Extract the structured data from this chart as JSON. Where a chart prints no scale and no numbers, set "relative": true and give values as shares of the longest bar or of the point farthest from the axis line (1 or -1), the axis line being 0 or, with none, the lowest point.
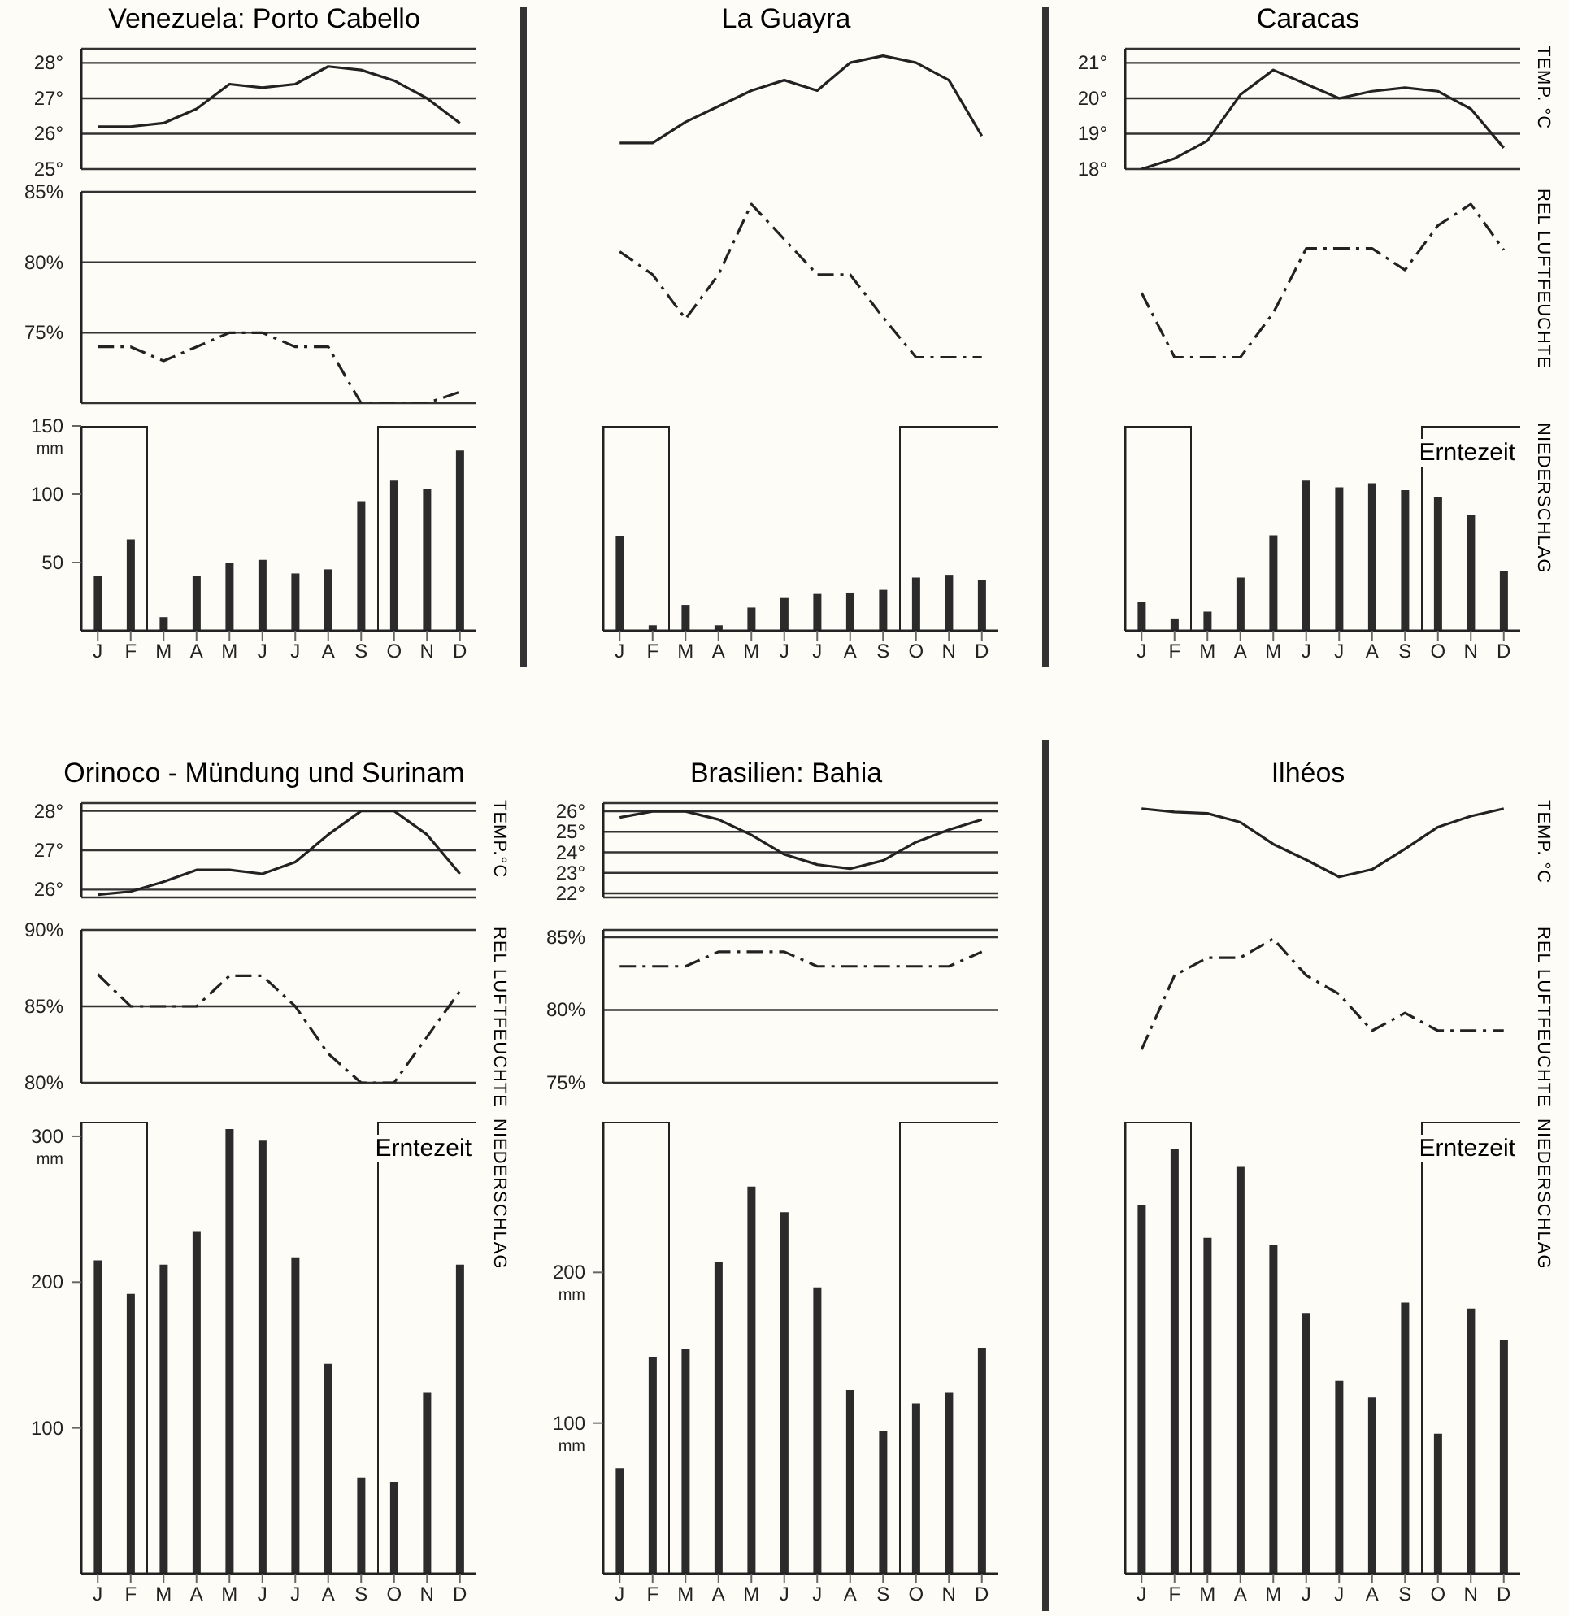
{
  "chart_data": [
    {
      "type": "line",
      "title": "Venezuela: Porto Cabello",
      "categories": [
        null,
        null,
        null,
        null,
        null,
        null,
        null,
        null,
        null,
        null,
        null,
        null
      ],
      "values": [
        26.2,
        26.2,
        26.3,
        26.7,
        27.4,
        27.3,
        27.4,
        27.9,
        27.8,
        27.5,
        27.0,
        26.3
      ],
      "color": "#222222",
      "line_style": "solid",
      "ylim": [
        25,
        28.4
      ],
      "yticks": [
        {
          "value": 28,
          "label": "28°"
        },
        {
          "value": 27,
          "label": "27°"
        },
        {
          "value": 26,
          "label": "26°"
        },
        {
          "value": 25,
          "label": "25°"
        }
      ],
      "grid": "y",
      "tick_labels": "y"
    },
    {
      "type": "line",
      "categories": [
        null,
        null,
        null,
        null,
        null,
        null,
        null,
        null,
        null,
        null,
        null,
        null
      ],
      "values": [
        74,
        74,
        73,
        74,
        75,
        75,
        74,
        74,
        70,
        70,
        70,
        70.8
      ],
      "color": "#222222",
      "line_style": "dashed",
      "ylim": [
        70,
        85
      ],
      "yticks": [
        {
          "value": 85,
          "label": "85%"
        },
        {
          "value": 80,
          "label": "80%"
        },
        {
          "value": 75,
          "label": "75%"
        },
        {
          "value": 70,
          "label": null
        }
      ],
      "grid": "y",
      "tick_labels": "y"
    },
    {
      "type": "bar",
      "categories": [
        "J",
        "F",
        "M",
        "A",
        "M",
        "J",
        "J",
        "A",
        "S",
        "O",
        "N",
        "D"
      ],
      "values": [
        40,
        67,
        10,
        40,
        50,
        52,
        42,
        45,
        95,
        110,
        104,
        132
      ],
      "color": "#2b2b2b",
      "ylim": [
        0,
        150
      ],
      "yticks": [
        50,
        100,
        {
          "value": 150,
          "label": "150$_{mm}$"
        }
      ]
    },
    {
      "type": "line",
      "title": "La Guayra",
      "categories": [
        null,
        null,
        null,
        null,
        null,
        null,
        null,
        null,
        null,
        null,
        null,
        null
      ],
      "values": [
        0,
        0,
        0.24,
        0.42,
        0.6,
        0.72,
        0.6,
        0.92,
        1,
        0.92,
        0.72,
        0.08
      ],
      "relative": true,
      "color": "#222222",
      "line_style": "solid",
      "tick_labels": false
    },
    {
      "type": "line",
      "categories": [
        null,
        null,
        null,
        null,
        null,
        null,
        null,
        null,
        null,
        null,
        null,
        null
      ],
      "values": [
        0.69,
        0.54,
        0.25,
        0.54,
        1,
        0.77,
        0.54,
        0.54,
        0.26,
        0,
        0,
        0
      ],
      "relative": true,
      "color": "#222222",
      "line_style": "dashed",
      "tick_labels": false
    },
    {
      "type": "bar",
      "categories": [
        "J",
        "F",
        "M",
        "A",
        "M",
        "J",
        "J",
        "A",
        "S",
        "O",
        "N",
        "D"
      ],
      "values": [
        69,
        4,
        19,
        4,
        17,
        24,
        27,
        28,
        30,
        39,
        41,
        37
      ],
      "color": "#2b2b2b",
      "ylim": [
        0,
        150
      ],
      "yticks": [
        {
          "value": 50,
          "label": null
        },
        {
          "value": 100,
          "label": null
        },
        {
          "value": 150,
          "label": null
        }
      ],
      "tick_labels": "x"
    },
    {
      "type": "line",
      "title": "Caracas",
      "ylabel": "TEMP. °C",
      "categories": [
        null,
        null,
        null,
        null,
        null,
        null,
        null,
        null,
        null,
        null,
        null,
        null
      ],
      "values": [
        18.0,
        18.3,
        18.8,
        20.1,
        20.8,
        20.4,
        20.0,
        20.2,
        20.3,
        20.2,
        19.7,
        18.6
      ],
      "color": "#222222",
      "line_style": "solid",
      "ylim": [
        18,
        21.4
      ],
      "yticks": [
        {
          "value": 21,
          "label": "21°"
        },
        {
          "value": 20,
          "label": "20°"
        },
        {
          "value": 19,
          "label": "19°"
        },
        {
          "value": 18,
          "label": "18°"
        }
      ],
      "grid": "y",
      "tick_labels": "y"
    },
    {
      "type": "line",
      "ylabel": "REL LUFTFEUCHTE",
      "categories": [
        null,
        null,
        null,
        null,
        null,
        null,
        null,
        null,
        null,
        null,
        null,
        null
      ],
      "values": [
        0.42,
        0,
        0,
        0,
        0.29,
        0.71,
        0.71,
        0.71,
        0.57,
        0.86,
        1,
        0.7
      ],
      "relative": true,
      "color": "#222222",
      "line_style": "dashed",
      "tick_labels": false
    },
    {
      "type": "bar",
      "ylabel": "NIEDERSCHLAG",
      "annotations": [
        "Erntezeit"
      ],
      "categories": [
        "J",
        "F",
        "M",
        "A",
        "M",
        "J",
        "J",
        "A",
        "S",
        "O",
        "N",
        "D"
      ],
      "values": [
        21,
        9,
        14,
        39,
        70,
        110,
        105,
        108,
        103,
        98,
        85,
        44
      ],
      "color": "#2b2b2b",
      "ylim": [
        0,
        150
      ],
      "yticks": [
        {
          "value": 50,
          "label": null
        },
        {
          "value": 100,
          "label": null
        },
        {
          "value": 150,
          "label": null
        }
      ],
      "tick_labels": "x"
    },
    {
      "type": "line",
      "title": "Orinoco - Mündung und Surinam",
      "ylabel": "TEMP.°C",
      "categories": [
        null,
        null,
        null,
        null,
        null,
        null,
        null,
        null,
        null,
        null,
        null,
        null
      ],
      "values": [
        25.87,
        25.95,
        26.2,
        26.5,
        26.5,
        26.4,
        26.7,
        27.4,
        28.0,
        28.0,
        27.4,
        26.4
      ],
      "color": "#222222",
      "line_style": "solid",
      "ylim": [
        25.8,
        28.2
      ],
      "yticks": [
        {
          "value": 28,
          "label": "28°"
        },
        {
          "value": 27,
          "label": "27°"
        },
        {
          "value": 26,
          "label": "26°"
        }
      ],
      "grid": "y",
      "tick_labels": "y"
    },
    {
      "type": "line",
      "ylabel": "REL LUFTFEUCHTE",
      "categories": [
        null,
        null,
        null,
        null,
        null,
        null,
        null,
        null,
        null,
        null,
        null,
        null
      ],
      "values": [
        87.1,
        85,
        85,
        85,
        87,
        87,
        85,
        81.9,
        80,
        80,
        83,
        86
      ],
      "color": "#222222",
      "line_style": "dashed",
      "ylim": [
        80,
        90
      ],
      "yticks": [
        {
          "value": 90,
          "label": "90%"
        },
        {
          "value": 85,
          "label": "85%"
        },
        {
          "value": 80,
          "label": "80%"
        }
      ],
      "grid": "y",
      "tick_labels": "y"
    },
    {
      "type": "bar",
      "ylabel": "NIEDERSCHLAG",
      "annotations": [
        "Erntezeit"
      ],
      "categories": [
        "J",
        "F",
        "M",
        "A",
        "M",
        "J",
        "J",
        "A",
        "S",
        "O",
        "N",
        "D"
      ],
      "values": [
        215,
        192,
        212,
        235,
        305,
        297,
        217,
        144,
        66,
        63,
        124,
        212
      ],
      "color": "#2b2b2b",
      "ylim": [
        0,
        310
      ],
      "yticks": [
        100,
        200,
        {
          "value": 300,
          "label": "300$_{mm}$"
        }
      ]
    },
    {
      "type": "line",
      "title": "Brasilien: Bahia",
      "categories": [
        null,
        null,
        null,
        null,
        null,
        null,
        null,
        null,
        null,
        null,
        null,
        null
      ],
      "values": [
        25.7,
        26.0,
        26.0,
        25.6,
        24.85,
        23.9,
        23.4,
        23.2,
        23.6,
        24.5,
        25.1,
        25.6
      ],
      "color": "#222222",
      "line_style": "solid",
      "ylim": [
        21.8,
        26.4
      ],
      "yticks": [
        {
          "value": 26,
          "label": "26°"
        },
        {
          "value": 25,
          "label": "25°"
        },
        {
          "value": 24,
          "label": "24°"
        },
        {
          "value": 23,
          "label": "23°"
        },
        {
          "value": 22,
          "label": "22°"
        }
      ],
      "grid": "y",
      "tick_labels": "y"
    },
    {
      "type": "line",
      "categories": [
        null,
        null,
        null,
        null,
        null,
        null,
        null,
        null,
        null,
        null,
        null,
        null
      ],
      "values": [
        83,
        83,
        83,
        84,
        84,
        84,
        83,
        83,
        83,
        83,
        83,
        84
      ],
      "color": "#222222",
      "line_style": "dashed",
      "ylim": [
        75,
        85.5
      ],
      "yticks": [
        {
          "value": 85,
          "label": "85%"
        },
        {
          "value": 80,
          "label": "80%"
        },
        {
          "value": 75,
          "label": "75%"
        }
      ],
      "grid": "y",
      "tick_labels": "y"
    },
    {
      "type": "bar",
      "categories": [
        "J",
        "F",
        "M",
        "A",
        "M",
        "J",
        "J",
        "A",
        "S",
        "O",
        "N",
        "D"
      ],
      "values": [
        70,
        144,
        149,
        207,
        257,
        240,
        190,
        122,
        95,
        113,
        120,
        150
      ],
      "color": "#2b2b2b",
      "ylim": [
        0,
        300
      ],
      "yticks": [
        {
          "value": 100,
          "label": "100$_{mm}$"
        },
        {
          "value": 200,
          "label": "200$_{mm}$"
        }
      ]
    },
    {
      "type": "line",
      "title": "Ilhéos",
      "ylabel": "TEMP. °C",
      "categories": [
        null,
        null,
        null,
        null,
        null,
        null,
        null,
        null,
        null,
        null,
        null,
        null
      ],
      "values": [
        1,
        0.95,
        0.93,
        0.8,
        0.48,
        0.25,
        0,
        0.11,
        0.41,
        0.73,
        0.89,
        1
      ],
      "relative": true,
      "color": "#222222",
      "line_style": "solid",
      "tick_labels": false
    },
    {
      "type": "line",
      "ylabel": "REL LUFTFEUCHTE",
      "categories": [
        null,
        null,
        null,
        null,
        null,
        null,
        null,
        null,
        null,
        null,
        null,
        null
      ],
      "values": [
        0,
        0.67,
        0.83,
        0.83,
        1,
        0.67,
        0.5,
        0.17,
        0.33,
        0.17,
        0.17,
        0.17
      ],
      "relative": true,
      "color": "#222222",
      "line_style": "dashed",
      "tick_labels": false
    },
    {
      "type": "bar",
      "ylabel": "NIEDERSCHLAG",
      "annotations": [
        "Erntezeit"
      ],
      "categories": [
        "J",
        "F",
        "M",
        "A",
        "M",
        "J",
        "J",
        "A",
        "S",
        "O",
        "N",
        "D"
      ],
      "values": [
        245,
        282,
        223,
        270,
        218,
        173,
        128,
        117,
        180,
        93,
        176,
        155
      ],
      "color": "#2b2b2b",
      "ylim": [
        0,
        300
      ],
      "yticks": [
        {
          "value": 100,
          "label": null
        },
        {
          "value": 200,
          "label": null
        }
      ],
      "tick_labels": "x"
    }
  ]
}
